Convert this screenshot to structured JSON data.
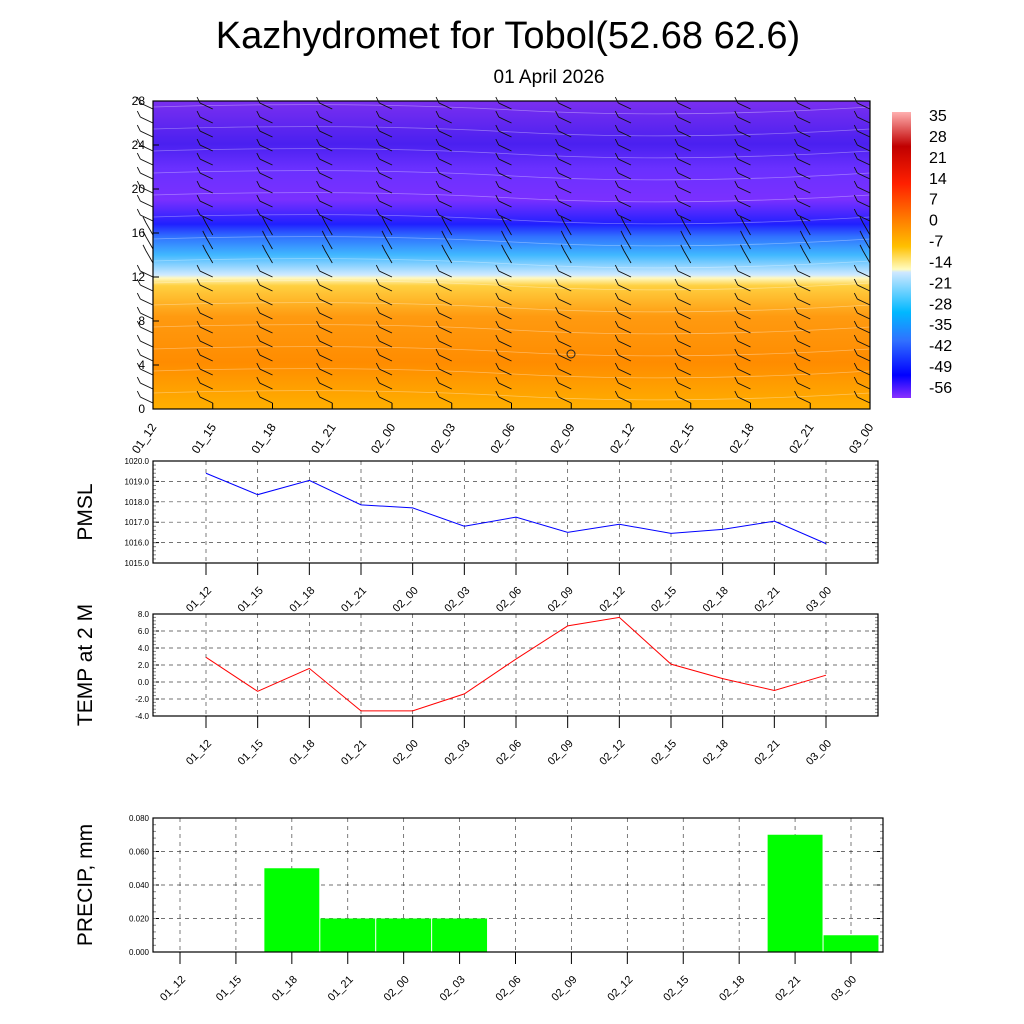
{
  "title": "Kazhydromet for Tobol(52.68 62.6)",
  "subtitle": "01 April 2026",
  "chart_data": [
    {
      "type": "heatmap",
      "name": "vertical-profile",
      "x_ticks": [
        "01_12",
        "01_15",
        "01_18",
        "01_21",
        "02_00",
        "02_03",
        "02_06",
        "02_09",
        "02_12",
        "02_15",
        "02_18",
        "02_21",
        "03_00"
      ],
      "y_ticks": [
        "0",
        "4",
        "8",
        "12",
        "16",
        "20",
        "24",
        "28"
      ],
      "ylim": [
        0,
        28
      ],
      "colorbar_labels": [
        "35",
        "28",
        "21",
        "14",
        "7",
        "0",
        "-7",
        "-14",
        "-21",
        "-28",
        "-35",
        "-42",
        "-49",
        "-56"
      ],
      "bands": [
        {
          "from": 0,
          "to": 12,
          "approx_value": 5,
          "color": "#ff8a00"
        },
        {
          "from": 12,
          "to": 16,
          "approx_value": -25,
          "color": "#40b8ff"
        },
        {
          "from": 16,
          "to": 28,
          "approx_value": -55,
          "color": "#6a2cff"
        }
      ]
    },
    {
      "type": "line",
      "name": "pmsl",
      "ylabel": "PMSL",
      "categories": [
        "01_12",
        "01_15",
        "01_18",
        "01_21",
        "02_00",
        "02_03",
        "02_06",
        "02_09",
        "02_12",
        "02_15",
        "02_18",
        "02_21",
        "03_00"
      ],
      "y_ticks": [
        "1015.0",
        "1016.0",
        "1017.0",
        "1018.0",
        "1019.0",
        "1020.0"
      ],
      "ylim": [
        1015,
        1020
      ],
      "color": "#0000ff",
      "values": [
        1019.4,
        1018.35,
        1019.05,
        1017.85,
        1017.7,
        1016.8,
        1017.25,
        1016.5,
        1016.9,
        1016.45,
        1016.65,
        1017.05,
        1015.95
      ]
    },
    {
      "type": "line",
      "name": "temp",
      "ylabel": "TEMP at 2 M",
      "categories": [
        "01_12",
        "01_15",
        "01_18",
        "01_21",
        "02_00",
        "02_03",
        "02_06",
        "02_09",
        "02_12",
        "02_15",
        "02_18",
        "02_21",
        "03_00"
      ],
      "y_ticks": [
        "-4.0",
        "-2.0",
        "0.0",
        "2.0",
        "4.0",
        "6.0",
        "8.0"
      ],
      "ylim": [
        -4,
        8
      ],
      "color": "#ff0000",
      "values": [
        2.9,
        -1.1,
        1.6,
        -3.4,
        -3.4,
        -1.4,
        2.7,
        6.6,
        7.6,
        2.1,
        0.4,
        -1.0,
        0.8
      ]
    },
    {
      "type": "bar",
      "name": "precip",
      "ylabel": "PRECIP, mm",
      "categories": [
        "01_12",
        "01_15",
        "01_18",
        "01_21",
        "02_00",
        "02_03",
        "02_06",
        "02_09",
        "02_12",
        "02_15",
        "02_18",
        "02_21",
        "03_00"
      ],
      "y_ticks": [
        "0.000",
        "0.020",
        "0.040",
        "0.060",
        "0.080"
      ],
      "ylim": [
        0,
        0.08
      ],
      "color": "#00ff00",
      "values": [
        0,
        0,
        0.05,
        0.02,
        0.02,
        0.02,
        0,
        0,
        0,
        0,
        0,
        0.07,
        0.01
      ]
    }
  ]
}
